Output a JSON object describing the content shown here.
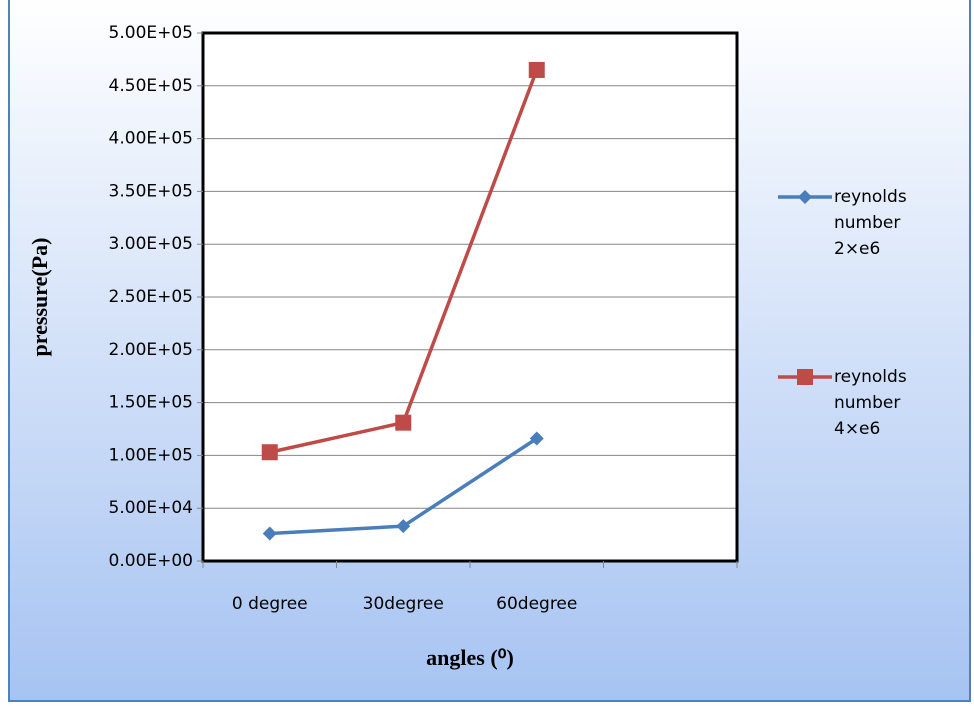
{
  "chart_data": {
    "type": "line",
    "categories": [
      "0 degree",
      "30degree",
      "60degree",
      null
    ],
    "series": [
      {
        "name": "reynolds number 2×e6",
        "color": "#4a7ebb",
        "marker": "diamond",
        "values": [
          26000,
          33000,
          116000,
          null
        ]
      },
      {
        "name": "reynolds number 4×e6",
        "color": "#be4b48",
        "marker": "square",
        "values": [
          103000,
          131000,
          465000,
          null
        ]
      }
    ],
    "ylabel": "pressure(Pa)",
    "xlabel": "angles (⁰)",
    "ylim": [
      0,
      500000
    ],
    "yticks": [
      {
        "value": 0,
        "label": "0.00E+00"
      },
      {
        "value": 50000,
        "label": "5.00E+04"
      },
      {
        "value": 100000,
        "label": "1.00E+05"
      },
      {
        "value": 150000,
        "label": "1.50E+05"
      },
      {
        "value": 200000,
        "label": "2.00E+05"
      },
      {
        "value": 250000,
        "label": "2.50E+05"
      },
      {
        "value": 300000,
        "label": "3.00E+05"
      },
      {
        "value": 350000,
        "label": "3.50E+05"
      },
      {
        "value": 400000,
        "label": "4.00E+05"
      },
      {
        "value": 450000,
        "label": "4.50E+05"
      },
      {
        "value": 500000,
        "label": "5.00E+05"
      }
    ],
    "grid": true,
    "legend": "right"
  }
}
